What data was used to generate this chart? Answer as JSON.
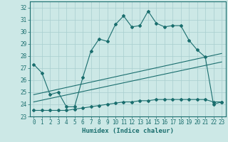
{
  "xlabel": "Humidex (Indice chaleur)",
  "bg_color": "#cce8e6",
  "grid_color": "#a8cece",
  "line_color": "#1a6e6e",
  "xlim": [
    -0.5,
    23.5
  ],
  "ylim": [
    23,
    32.5
  ],
  "yticks": [
    23,
    24,
    25,
    26,
    27,
    28,
    29,
    30,
    31,
    32
  ],
  "xticks": [
    0,
    1,
    2,
    3,
    4,
    5,
    6,
    7,
    8,
    9,
    10,
    11,
    12,
    13,
    14,
    15,
    16,
    17,
    18,
    19,
    20,
    21,
    22,
    23
  ],
  "series1_x": [
    0,
    1,
    2,
    3,
    4,
    5,
    6,
    7,
    8,
    9,
    10,
    11,
    12,
    13,
    14,
    15,
    16,
    17,
    18,
    19,
    20,
    21,
    22,
    23
  ],
  "series1_y": [
    27.3,
    26.6,
    24.8,
    25.0,
    23.8,
    23.8,
    26.2,
    28.4,
    29.4,
    29.2,
    30.6,
    31.3,
    30.4,
    30.5,
    31.7,
    30.7,
    30.4,
    30.5,
    30.5,
    29.3,
    28.5,
    27.9,
    24.0,
    24.2
  ],
  "series2_x": [
    0,
    1,
    2,
    3,
    4,
    5,
    6,
    7,
    8,
    9,
    10,
    11,
    12,
    13,
    14,
    15,
    16,
    17,
    18,
    19,
    20,
    21,
    22,
    23
  ],
  "series2_y": [
    23.5,
    23.5,
    23.5,
    23.5,
    23.5,
    23.6,
    23.7,
    23.8,
    23.9,
    24.0,
    24.1,
    24.2,
    24.2,
    24.3,
    24.3,
    24.4,
    24.4,
    24.4,
    24.4,
    24.4,
    24.4,
    24.4,
    24.2,
    24.2
  ],
  "series3_x": [
    0,
    23
  ],
  "series3_y": [
    24.8,
    28.2
  ],
  "series4_x": [
    0,
    23
  ],
  "series4_y": [
    24.2,
    27.5
  ]
}
